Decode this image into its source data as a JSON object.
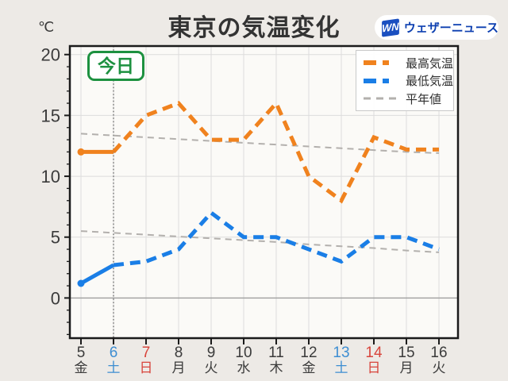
{
  "header": {
    "unit_label": "℃",
    "title": "東京の気温変化",
    "logo": {
      "badge": "WN",
      "text": "ウェザーニュース"
    }
  },
  "today_badge": {
    "label": "今日"
  },
  "legend": {
    "items": [
      {
        "label": "最高気温",
        "color": "#f0821e",
        "width": 5,
        "dash": "16 8 8"
      },
      {
        "label": "最低気温",
        "color": "#1a7ee6",
        "width": 5,
        "dash": "16 8 8"
      },
      {
        "label": "平年値",
        "color": "#b3b0ad",
        "width": 2,
        "dash": "9 7"
      }
    ]
  },
  "chart_data": {
    "type": "line",
    "title": "東京の気温変化",
    "x": [
      5,
      6,
      7,
      8,
      9,
      10,
      11,
      12,
      13,
      14,
      15,
      16
    ],
    "x_weekdays": [
      "金",
      "土",
      "日",
      "月",
      "火",
      "水",
      "木",
      "金",
      "土",
      "日",
      "月",
      "火"
    ],
    "x_label_colors": [
      "#3b3b3b",
      "#3e8ed2",
      "#d8453c",
      "#3b3b3b",
      "#3b3b3b",
      "#3b3b3b",
      "#3b3b3b",
      "#3b3b3b",
      "#3e8ed2",
      "#d8453c",
      "#3b3b3b",
      "#3b3b3b"
    ],
    "today_index": 1,
    "ylabel": "℃",
    "ylim": [
      -3.3,
      20.7
    ],
    "yticks": [
      0,
      5,
      10,
      15,
      20
    ],
    "minor_tick_step": 1,
    "grid": true,
    "legend_position": "top-right",
    "series": [
      {
        "name": "平年値(最高)",
        "role": "normal",
        "color": "#b3b0ad",
        "width": 2,
        "dash": "8 6",
        "values": [
          13.5,
          13.35,
          13.2,
          13.05,
          12.9,
          12.75,
          12.6,
          12.45,
          12.3,
          12.15,
          12.0,
          11.9
        ]
      },
      {
        "name": "平年値(最低)",
        "role": "normal",
        "color": "#b3b0ad",
        "width": 2,
        "dash": "8 6",
        "values": [
          5.5,
          5.35,
          5.2,
          5.05,
          4.9,
          4.75,
          4.6,
          4.4,
          4.25,
          4.1,
          3.9,
          3.75
        ]
      },
      {
        "name": "最低気温",
        "role": "forecast",
        "color": "#1a7ee6",
        "width": 5,
        "dash": "13 8",
        "observed_solid_until": 1,
        "values": [
          1.2,
          2.7,
          3,
          4,
          7,
          5,
          5,
          4,
          3,
          5,
          5,
          4
        ]
      },
      {
        "name": "最高気温",
        "role": "forecast",
        "color": "#f0821e",
        "width": 5,
        "dash": "13 8",
        "observed_solid_until": 1,
        "values": [
          12,
          12,
          15,
          16,
          13,
          13,
          16,
          10,
          8,
          13.2,
          12.2,
          12.2
        ]
      }
    ]
  },
  "colors": {
    "page_bg": "#edeae6",
    "plot_bg": "#fbfaf7",
    "frame": "#1b1b1b",
    "grid": "#dcdcdc",
    "zero_line": "#9e9e9e",
    "today_line": "#555555",
    "accent_green": "#1d9140",
    "tick_text": "#3b3b3b"
  }
}
